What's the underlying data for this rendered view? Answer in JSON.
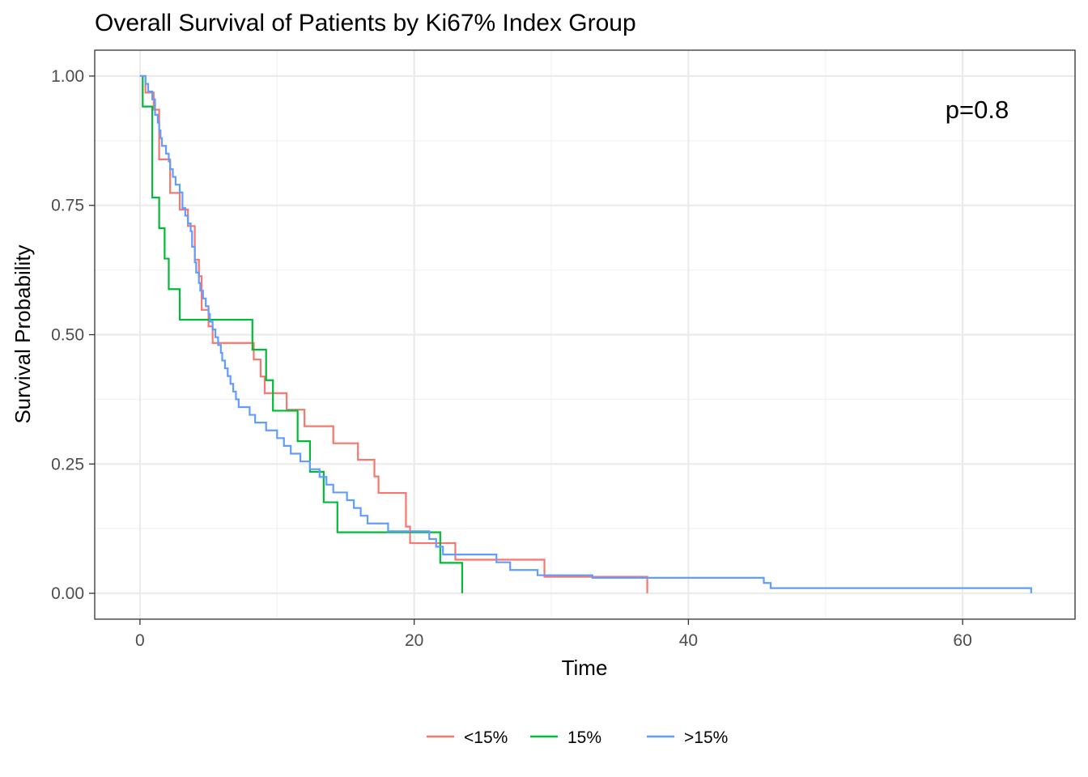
{
  "chart_data": {
    "type": "line",
    "title": "Overall Survival of Patients by Ki67% Index Group",
    "xlabel": "Time",
    "ylabel": "Survival Probability",
    "xlim": [
      -3.3,
      68.2
    ],
    "ylim": [
      -0.05,
      1.05
    ],
    "x_ticks": [
      0,
      20,
      40,
      60
    ],
    "y_ticks": [
      0,
      0.25,
      0.5,
      0.75,
      1
    ],
    "x_tick_labels": [
      "0",
      "20",
      "40",
      "60"
    ],
    "y_tick_labels": [
      "0.00",
      "0.25",
      "0.50",
      "0.75",
      "1.00"
    ],
    "grid": true,
    "legend_position": "bottom",
    "annotation": "p=0.8",
    "step": true,
    "series": [
      {
        "name": "<15%",
        "color": "#F8766D",
        "points": [
          [
            0,
            1.0
          ],
          [
            0.4,
            0.968
          ],
          [
            1.0,
            0.935
          ],
          [
            1.4,
            0.839
          ],
          [
            2.2,
            0.774
          ],
          [
            2.9,
            0.742
          ],
          [
            3.5,
            0.71
          ],
          [
            4.0,
            0.645
          ],
          [
            4.3,
            0.613
          ],
          [
            4.5,
            0.548
          ],
          [
            5.0,
            0.516
          ],
          [
            5.3,
            0.484
          ],
          [
            8.3,
            0.452
          ],
          [
            8.8,
            0.419
          ],
          [
            9.1,
            0.387
          ],
          [
            10.7,
            0.355
          ],
          [
            12.0,
            0.323
          ],
          [
            14.1,
            0.29
          ],
          [
            15.9,
            0.258
          ],
          [
            17.1,
            0.226
          ],
          [
            17.4,
            0.194
          ],
          [
            19.4,
            0.129
          ],
          [
            19.7,
            0.097
          ],
          [
            23.0,
            0.065
          ],
          [
            29.5,
            0.032
          ],
          [
            37.0,
            0.032
          ],
          [
            37.0,
            0.0
          ]
        ]
      },
      {
        "name": "15%",
        "color": "#00BA38",
        "points": [
          [
            0,
            1.0
          ],
          [
            0.2,
            0.941
          ],
          [
            0.9,
            0.765
          ],
          [
            1.4,
            0.706
          ],
          [
            1.8,
            0.647
          ],
          [
            2.1,
            0.588
          ],
          [
            2.9,
            0.529
          ],
          [
            8.2,
            0.471
          ],
          [
            9.2,
            0.412
          ],
          [
            9.7,
            0.353
          ],
          [
            11.5,
            0.294
          ],
          [
            12.4,
            0.235
          ],
          [
            13.4,
            0.176
          ],
          [
            14.4,
            0.118
          ],
          [
            21.9,
            0.059
          ],
          [
            23.5,
            0.059
          ],
          [
            23.5,
            0.0
          ]
        ]
      },
      {
        "name": ">15%",
        "color": "#619CFF",
        "points": [
          [
            0,
            1.0
          ],
          [
            0.4,
            0.985
          ],
          [
            0.6,
            0.97
          ],
          [
            0.9,
            0.955
          ],
          [
            1.1,
            0.925
          ],
          [
            1.3,
            0.91
          ],
          [
            1.4,
            0.895
          ],
          [
            1.5,
            0.88
          ],
          [
            1.6,
            0.865
          ],
          [
            1.9,
            0.85
          ],
          [
            2.1,
            0.835
          ],
          [
            2.2,
            0.82
          ],
          [
            2.4,
            0.805
          ],
          [
            2.6,
            0.79
          ],
          [
            2.9,
            0.775
          ],
          [
            3.1,
            0.745
          ],
          [
            3.3,
            0.73
          ],
          [
            3.5,
            0.715
          ],
          [
            3.7,
            0.7
          ],
          [
            3.8,
            0.67
          ],
          [
            4.0,
            0.64
          ],
          [
            4.1,
            0.62
          ],
          [
            4.3,
            0.6
          ],
          [
            4.4,
            0.585
          ],
          [
            4.6,
            0.57
          ],
          [
            4.8,
            0.555
          ],
          [
            5.0,
            0.54
          ],
          [
            5.1,
            0.525
          ],
          [
            5.3,
            0.51
          ],
          [
            5.5,
            0.495
          ],
          [
            5.7,
            0.48
          ],
          [
            5.9,
            0.465
          ],
          [
            6.0,
            0.45
          ],
          [
            6.2,
            0.435
          ],
          [
            6.4,
            0.42
          ],
          [
            6.6,
            0.405
          ],
          [
            6.8,
            0.39
          ],
          [
            7.0,
            0.375
          ],
          [
            7.2,
            0.36
          ],
          [
            8.0,
            0.345
          ],
          [
            8.4,
            0.33
          ],
          [
            9.2,
            0.315
          ],
          [
            10.0,
            0.3
          ],
          [
            10.5,
            0.285
          ],
          [
            11.0,
            0.27
          ],
          [
            11.7,
            0.255
          ],
          [
            12.4,
            0.24
          ],
          [
            13.1,
            0.225
          ],
          [
            13.6,
            0.21
          ],
          [
            14.1,
            0.195
          ],
          [
            15.1,
            0.18
          ],
          [
            15.6,
            0.165
          ],
          [
            16.1,
            0.15
          ],
          [
            16.6,
            0.135
          ],
          [
            18.1,
            0.12
          ],
          [
            21.1,
            0.105
          ],
          [
            21.6,
            0.09
          ],
          [
            22.1,
            0.075
          ],
          [
            26.0,
            0.06
          ],
          [
            27.0,
            0.045
          ],
          [
            29.0,
            0.035
          ],
          [
            33.0,
            0.03
          ],
          [
            45.5,
            0.02
          ],
          [
            46.0,
            0.01
          ],
          [
            65.0,
            0.01
          ],
          [
            65.0,
            0.0
          ]
        ]
      }
    ]
  }
}
